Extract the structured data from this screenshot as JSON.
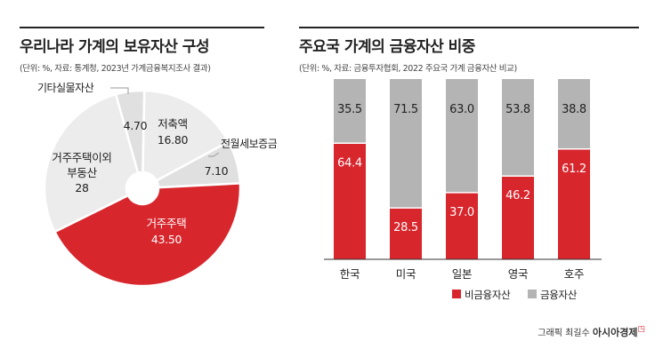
{
  "colors": {
    "red": "#d8262d",
    "gray": "#b4b4b4",
    "light": "#e0e0e0",
    "lighter": "#ececec"
  },
  "left": {
    "title": "우리나라 가계의 보유자산 구성",
    "subtitle": "(단위: %, 자료: 통계청, 2023년 가계금융복지조사 결과)"
  },
  "right": {
    "title": "주요국 가계의 금융자산 비중",
    "subtitle": "(단위: %, 자료: 금융투자협회, 2022 주요국 가계 금융자산 비교)"
  },
  "credit": {
    "prefix": "그래픽 최길수",
    "brand": "아시아경제"
  },
  "chart_data": [
    {
      "type": "pie",
      "title": "우리나라 가계의 보유자산 구성",
      "slices": [
        {
          "label": "저축액",
          "value": 16.8,
          "display": "16.80"
        },
        {
          "label": "전월세보증금",
          "value": 7.1,
          "display": "7.10"
        },
        {
          "label": "거주주택",
          "value": 43.5,
          "display": "43.50"
        },
        {
          "label": "거주주택이외 부동산",
          "value": 28,
          "display": "28"
        },
        {
          "label": "기타실물자산",
          "value": 4.7,
          "display": "4.70"
        }
      ]
    },
    {
      "type": "bar",
      "stacked": true,
      "title": "주요국 가계의 금융자산 비중",
      "categories": [
        "한국",
        "미국",
        "일본",
        "영국",
        "호주"
      ],
      "ylim": [
        0,
        100
      ],
      "series": [
        {
          "name": "비금융자산",
          "values": [
            64.4,
            28.5,
            37.0,
            46.2,
            61.2
          ],
          "display": [
            "64.4",
            "28.5",
            "37.0",
            "46.2",
            "61.2"
          ]
        },
        {
          "name": "금융자산",
          "values": [
            35.5,
            71.5,
            63.0,
            53.8,
            38.8
          ],
          "display": [
            "35.5",
            "71.5",
            "63.0",
            "53.8",
            "38.8"
          ]
        }
      ],
      "legend": "bottom"
    }
  ]
}
